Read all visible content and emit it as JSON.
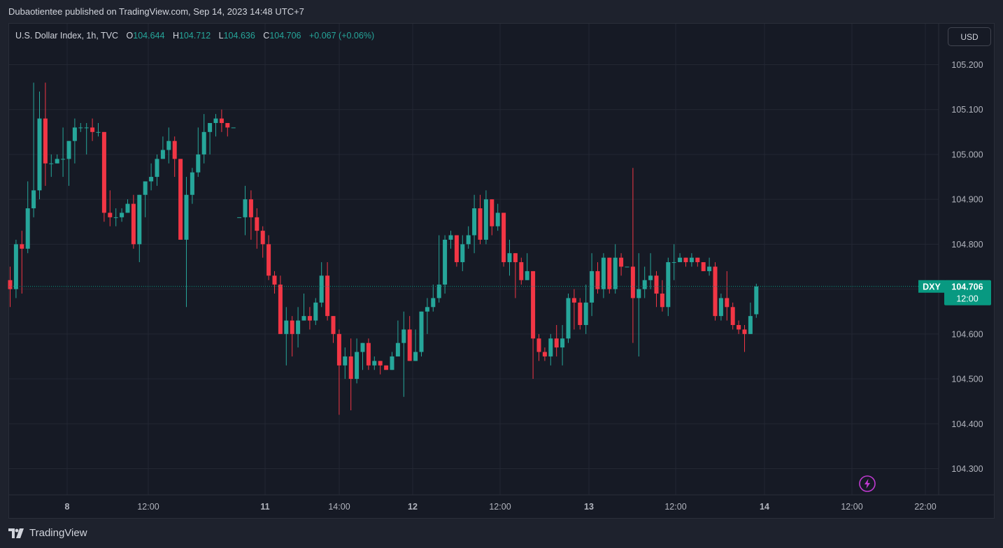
{
  "header": {
    "publisher_line": "Dubaotientee published on TradingView.com, Sep 14, 2023 14:48 UTC+7"
  },
  "legend": {
    "symbol": "U.S. Dollar Index, 1h, TVC",
    "o_label": "O",
    "o": "104.644",
    "h_label": "H",
    "h": "104.712",
    "l_label": "L",
    "l": "104.636",
    "c_label": "C",
    "c": "104.706",
    "change": "+0.067 (+0.06%)"
  },
  "currency_button": "USD",
  "price_tag": {
    "ticker": "DXY",
    "price": "104.706",
    "countdown": "12:00",
    "value": 104.706
  },
  "footer": {
    "brand": "TradingView",
    "logo_icon": "tradingview-logo-icon"
  },
  "colors": {
    "up": "#26a69a",
    "down": "#f23645",
    "background": "#161a25",
    "grid": "#232733",
    "tag": "#089981",
    "flash": "#c03ad1"
  },
  "chart_data": {
    "type": "candlestick",
    "interval": "1h",
    "grid": true,
    "ylim": [
      104.24,
      105.26
    ],
    "y_ticks": [
      "105.200",
      "105.100",
      "105.000",
      "104.900",
      "104.800",
      "104.700",
      "104.600",
      "104.500",
      "104.400",
      "104.300"
    ],
    "x_ticks": [
      "8",
      "12:00",
      "11",
      "14:00",
      "12",
      "12:00",
      "13",
      "12:00",
      "14",
      "12:00",
      "22:00"
    ],
    "x_ticks_bold": [
      true,
      false,
      true,
      false,
      true,
      false,
      true,
      false,
      true,
      false,
      false
    ],
    "candles": [
      [
        104.72,
        104.7,
        104.75,
        104.66
      ],
      [
        104.7,
        104.8,
        104.81,
        104.68
      ],
      [
        104.8,
        104.79,
        104.83,
        104.69
      ],
      [
        104.79,
        104.88,
        104.94,
        104.78
      ],
      [
        104.88,
        104.92,
        105.16,
        104.86
      ],
      [
        104.92,
        105.08,
        105.14,
        104.9
      ],
      [
        105.08,
        104.98,
        105.16,
        104.93
      ],
      [
        104.98,
        104.98,
        105.0,
        104.95
      ],
      [
        104.98,
        104.99,
        105.0,
        104.98
      ],
      [
        104.99,
        104.99,
        105.06,
        104.95
      ],
      [
        104.99,
        105.03,
        105.03,
        104.93
      ],
      [
        105.03,
        105.06,
        105.08,
        104.98
      ],
      [
        105.06,
        105.06,
        105.07,
        105.05
      ],
      [
        105.06,
        105.06,
        105.07,
        105.0
      ],
      [
        105.06,
        105.05,
        105.08,
        105.03
      ],
      [
        105.05,
        105.05,
        105.07,
        105.04
      ],
      [
        105.05,
        104.87,
        105.05,
        104.85
      ],
      [
        104.87,
        104.86,
        104.92,
        104.84
      ],
      [
        104.86,
        104.86,
        104.88,
        104.84
      ],
      [
        104.86,
        104.87,
        104.88,
        104.85
      ],
      [
        104.87,
        104.89,
        104.9,
        104.87
      ],
      [
        104.89,
        104.8,
        104.91,
        104.79
      ],
      [
        104.8,
        104.91,
        104.91,
        104.76
      ],
      [
        104.91,
        104.94,
        104.94,
        104.86
      ],
      [
        104.94,
        104.95,
        104.98,
        104.92
      ],
      [
        104.95,
        104.99,
        105.0,
        104.93
      ],
      [
        104.99,
        105.01,
        105.04,
        104.99
      ],
      [
        105.01,
        105.03,
        105.06,
        104.98
      ],
      [
        105.03,
        104.99,
        105.04,
        104.95
      ],
      [
        104.99,
        104.81,
        104.99,
        104.81
      ],
      [
        104.81,
        104.91,
        104.95,
        104.66
      ],
      [
        104.91,
        104.96,
        104.97,
        104.89
      ],
      [
        104.96,
        105.0,
        105.06,
        104.95
      ],
      [
        105.0,
        105.05,
        105.09,
        104.98
      ],
      [
        105.05,
        105.07,
        105.07,
        105.0
      ],
      [
        105.07,
        105.08,
        105.09,
        105.04
      ],
      [
        105.08,
        105.07,
        105.1,
        105.05
      ],
      [
        105.07,
        105.06,
        105.07,
        105.04
      ],
      [
        105.06,
        105.06,
        105.06,
        105.06
      ],
      [
        104.86,
        104.86,
        104.86,
        104.86
      ],
      [
        104.86,
        104.9,
        104.93,
        104.82
      ],
      [
        104.9,
        104.86,
        104.92,
        104.81
      ],
      [
        104.86,
        104.83,
        104.88,
        104.79
      ],
      [
        104.83,
        104.8,
        104.84,
        104.77
      ],
      [
        104.8,
        104.73,
        104.82,
        104.72
      ],
      [
        104.73,
        104.71,
        104.74,
        104.69
      ],
      [
        104.71,
        104.6,
        104.73,
        104.6
      ],
      [
        104.6,
        104.63,
        104.66,
        104.53
      ],
      [
        104.63,
        104.6,
        104.64,
        104.55
      ],
      [
        104.6,
        104.63,
        104.66,
        104.57
      ],
      [
        104.63,
        104.64,
        104.69,
        104.63
      ],
      [
        104.64,
        104.63,
        104.66,
        104.61
      ],
      [
        104.63,
        104.67,
        104.68,
        104.62
      ],
      [
        104.67,
        104.73,
        104.76,
        104.66
      ],
      [
        104.73,
        104.64,
        104.76,
        104.63
      ],
      [
        104.64,
        104.6,
        104.64,
        104.58
      ],
      [
        104.6,
        104.53,
        104.61,
        104.42
      ],
      [
        104.53,
        104.55,
        104.57,
        104.5
      ],
      [
        104.55,
        104.5,
        104.59,
        104.43
      ],
      [
        104.5,
        104.56,
        104.59,
        104.49
      ],
      [
        104.56,
        104.58,
        104.58,
        104.52
      ],
      [
        104.58,
        104.53,
        104.59,
        104.52
      ],
      [
        104.53,
        104.54,
        104.55,
        104.52
      ],
      [
        104.54,
        104.53,
        104.54,
        104.51
      ],
      [
        104.53,
        104.52,
        104.53,
        104.52
      ],
      [
        104.52,
        104.55,
        104.56,
        104.52
      ],
      [
        104.55,
        104.58,
        104.63,
        104.55
      ],
      [
        104.58,
        104.61,
        104.65,
        104.46
      ],
      [
        104.61,
        104.54,
        104.64,
        104.54
      ],
      [
        104.54,
        104.56,
        104.61,
        104.54
      ],
      [
        104.56,
        104.65,
        104.65,
        104.55
      ],
      [
        104.65,
        104.66,
        104.68,
        104.6
      ],
      [
        104.66,
        104.68,
        104.71,
        104.65
      ],
      [
        104.68,
        104.71,
        104.82,
        104.67
      ],
      [
        104.71,
        104.81,
        104.82,
        104.69
      ],
      [
        104.81,
        104.82,
        104.83,
        104.79
      ],
      [
        104.82,
        104.76,
        104.82,
        104.75
      ],
      [
        104.76,
        104.8,
        104.82,
        104.74
      ],
      [
        104.8,
        104.82,
        104.84,
        104.79
      ],
      [
        104.82,
        104.88,
        104.91,
        104.78
      ],
      [
        104.88,
        104.81,
        104.91,
        104.8
      ],
      [
        104.81,
        104.9,
        104.92,
        104.8
      ],
      [
        104.9,
        104.84,
        104.9,
        104.82
      ],
      [
        104.84,
        104.87,
        104.89,
        104.83
      ],
      [
        104.87,
        104.76,
        104.87,
        104.75
      ],
      [
        104.76,
        104.78,
        104.81,
        104.73
      ],
      [
        104.78,
        104.76,
        104.78,
        104.68
      ],
      [
        104.76,
        104.72,
        104.77,
        104.71
      ],
      [
        104.72,
        104.74,
        104.78,
        104.72
      ],
      [
        104.74,
        104.59,
        104.74,
        104.5
      ],
      [
        104.59,
        104.56,
        104.6,
        104.54
      ],
      [
        104.56,
        104.55,
        104.57,
        104.54
      ],
      [
        104.55,
        104.59,
        104.6,
        104.53
      ],
      [
        104.59,
        104.57,
        104.62,
        104.55
      ],
      [
        104.57,
        104.59,
        104.62,
        104.53
      ],
      [
        104.59,
        104.68,
        104.69,
        104.58
      ],
      [
        104.68,
        104.67,
        104.7,
        104.61
      ],
      [
        104.67,
        104.62,
        104.68,
        104.61
      ],
      [
        104.62,
        104.67,
        104.71,
        104.6
      ],
      [
        104.67,
        104.74,
        104.78,
        104.64
      ],
      [
        104.74,
        104.7,
        104.76,
        104.69
      ],
      [
        104.7,
        104.77,
        104.78,
        104.68
      ],
      [
        104.77,
        104.7,
        104.77,
        104.69
      ],
      [
        104.7,
        104.77,
        104.8,
        104.69
      ],
      [
        104.77,
        104.75,
        104.78,
        104.73
      ],
      [
        104.75,
        104.75,
        104.75,
        104.75
      ],
      [
        104.75,
        104.68,
        104.97,
        104.58
      ],
      [
        104.68,
        104.7,
        104.78,
        104.55
      ],
      [
        104.7,
        104.72,
        104.75,
        104.68
      ],
      [
        104.72,
        104.73,
        104.78,
        104.7
      ],
      [
        104.73,
        104.69,
        104.74,
        104.66
      ],
      [
        104.69,
        104.66,
        104.72,
        104.65
      ],
      [
        104.66,
        104.76,
        104.77,
        104.64
      ],
      [
        104.76,
        104.76,
        104.8,
        104.72
      ],
      [
        104.76,
        104.77,
        104.78,
        104.77
      ],
      [
        104.77,
        104.76,
        104.77,
        104.75
      ],
      [
        104.76,
        104.77,
        104.78,
        104.75
      ],
      [
        104.77,
        104.76,
        104.77,
        104.75
      ],
      [
        104.76,
        104.74,
        104.76,
        104.74
      ],
      [
        104.74,
        104.75,
        104.77,
        104.73
      ],
      [
        104.75,
        104.64,
        104.76,
        104.63
      ],
      [
        104.64,
        104.68,
        104.69,
        104.63
      ],
      [
        104.68,
        104.66,
        104.74,
        104.63
      ],
      [
        104.66,
        104.62,
        104.67,
        104.61
      ],
      [
        104.62,
        104.61,
        104.63,
        104.6
      ],
      [
        104.61,
        104.6,
        104.62,
        104.56
      ],
      [
        104.6,
        104.64,
        104.67,
        104.6
      ],
      [
        104.644,
        104.706,
        104.712,
        104.636
      ]
    ]
  }
}
